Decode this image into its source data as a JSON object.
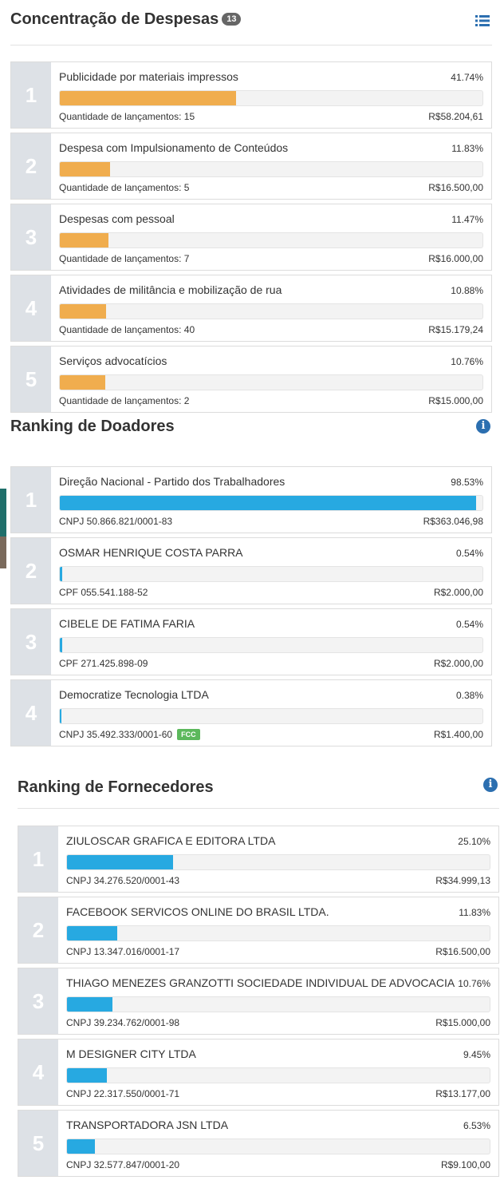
{
  "despesas": {
    "title": "Concentração de Despesas",
    "count": "13",
    "items": [
      {
        "rank": "1",
        "name": "Publicidade por materiais impressos",
        "percent": "41.74%",
        "share": 41.74,
        "sub": "Quantidade de lançamentos: 15",
        "value": "R$58.204,61"
      },
      {
        "rank": "2",
        "name": "Despesa com Impulsionamento de Conteúdos",
        "percent": "11.83%",
        "share": 11.83,
        "sub": "Quantidade de lançamentos: 5",
        "value": "R$16.500,00"
      },
      {
        "rank": "3",
        "name": "Despesas com pessoal",
        "percent": "11.47%",
        "share": 11.47,
        "sub": "Quantidade de lançamentos: 7",
        "value": "R$16.000,00"
      },
      {
        "rank": "4",
        "name": "Atividades de militância e mobilização de rua",
        "percent": "10.88%",
        "share": 10.88,
        "sub": "Quantidade de lançamentos: 40",
        "value": "R$15.179,24"
      },
      {
        "rank": "5",
        "name": "Serviços advocatícios",
        "percent": "10.76%",
        "share": 10.76,
        "sub": "Quantidade de lançamentos: 2",
        "value": "R$15.000,00"
      }
    ]
  },
  "doadores": {
    "title": "Ranking de Doadores",
    "items": [
      {
        "rank": "1",
        "name": "Direção Nacional - Partido dos Trabalhadores",
        "percent": "98.53%",
        "share": 98.53,
        "sub": "CNPJ 50.866.821/0001-83",
        "value": "R$363.046,98"
      },
      {
        "rank": "2",
        "name": "OSMAR HENRIQUE COSTA PARRA",
        "percent": "0.54%",
        "share": 0.54,
        "sub": "CPF 055.541.188-52",
        "value": "R$2.000,00"
      },
      {
        "rank": "3",
        "name": "CIBELE DE FATIMA FARIA",
        "percent": "0.54%",
        "share": 0.54,
        "sub": "CPF 271.425.898-09",
        "value": "R$2.000,00"
      },
      {
        "rank": "4",
        "name": "Democratize Tecnologia LTDA",
        "percent": "0.38%",
        "share": 0.38,
        "sub": "CNPJ 35.492.333/0001-60",
        "badge": "FCC",
        "value": "R$1.400,00"
      }
    ]
  },
  "fornecedores": {
    "title": "Ranking de Fornecedores",
    "items": [
      {
        "rank": "1",
        "name": "ZIULOSCAR GRAFICA E EDITORA LTDA",
        "percent": "25.10%",
        "share": 25.1,
        "sub": "CNPJ 34.276.520/0001-43",
        "value": "R$34.999,13"
      },
      {
        "rank": "2",
        "name": "FACEBOOK SERVICOS ONLINE DO BRASIL LTDA.",
        "percent": "11.83%",
        "share": 11.83,
        "sub": "CNPJ 13.347.016/0001-17",
        "value": "R$16.500,00"
      },
      {
        "rank": "3",
        "name": "THIAGO MENEZES GRANZOTTI SOCIEDADE INDIVIDUAL DE ADVOCACIA",
        "percent": "10.76%",
        "share": 10.76,
        "sub": "CNPJ 39.234.762/0001-98",
        "value": "R$15.000,00"
      },
      {
        "rank": "4",
        "name": "M DESIGNER CITY LTDA",
        "percent": "9.45%",
        "share": 9.45,
        "sub": "CNPJ 22.317.550/0001-71",
        "value": "R$13.177,00"
      },
      {
        "rank": "5",
        "name": "TRANSPORTADORA JSN LTDA",
        "percent": "6.53%",
        "share": 6.53,
        "sub": "CNPJ 32.577.847/0001-20",
        "value": "R$9.100,00"
      }
    ]
  },
  "colors": {
    "despesas_bar": "#f0ad4e",
    "doadores_bar": "#27a9e1",
    "fornecedores_bar": "#27a9e1",
    "fcc_badge": "#5cb85c",
    "info_icon": "#2c6fb0"
  },
  "icons": {
    "despesas_header": "list-icon",
    "doadores_header": "info-icon",
    "fornecedores_header": "info-icon"
  }
}
